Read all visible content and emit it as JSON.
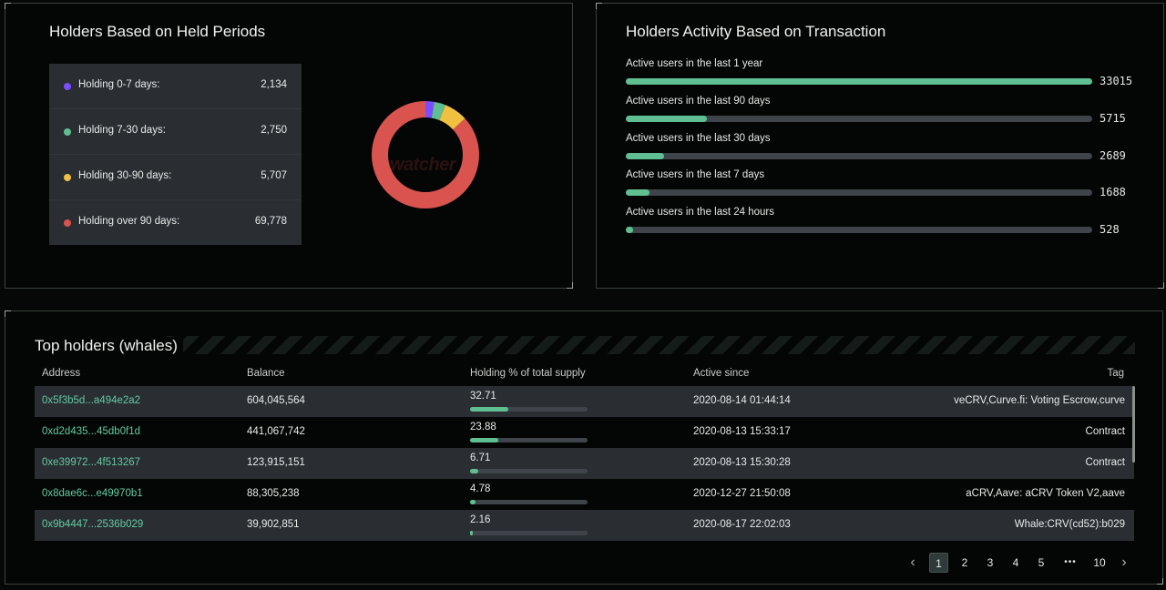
{
  "held_periods": {
    "title": "Holders Based on Held Periods",
    "watermark": "watcher",
    "items": [
      {
        "label": "Holding 0-7 days:",
        "value": "2,134",
        "amount": 2134,
        "color": "#7c4dff"
      },
      {
        "label": "Holding 7-30 days:",
        "value": "2,750",
        "amount": 2750,
        "color": "#5fbf93"
      },
      {
        "label": "Holding 30-90 days:",
        "value": "5,707",
        "amount": 5707,
        "color": "#f0c040"
      },
      {
        "label": "Holding over 90 days:",
        "value": "69,778",
        "amount": 69778,
        "color": "#d9534f"
      }
    ]
  },
  "activity": {
    "title": "Holders Activity Based on Transaction",
    "max": 33015,
    "items": [
      {
        "label": "Active users in the last 1 year",
        "value": "33015",
        "amount": 33015
      },
      {
        "label": "Active users in the last 90 days",
        "value": "5715",
        "amount": 5715
      },
      {
        "label": "Active users in the last 30 days",
        "value": "2689",
        "amount": 2689
      },
      {
        "label": "Active users in the last 7 days",
        "value": "1688",
        "amount": 1688
      },
      {
        "label": "Active users in the last 24 hours",
        "value": "528",
        "amount": 528
      }
    ]
  },
  "top_holders": {
    "title": "Top holders (whales)",
    "columns": {
      "address": "Address",
      "balance": "Balance",
      "pct": "Holding % of total supply",
      "since": "Active since",
      "tag": "Tag"
    },
    "rows": [
      {
        "address": "0x5f3b5d...a494e2a2",
        "balance": "604,045,564",
        "pct": "32.71",
        "pct_value": 32.71,
        "since": "2020-08-14 01:44:14",
        "tag": "veCRV,Curve.fi: Voting Escrow,curve"
      },
      {
        "address": "0xd2d435...45db0f1d",
        "balance": "441,067,742",
        "pct": "23.88",
        "pct_value": 23.88,
        "since": "2020-08-13 15:33:17",
        "tag": "Contract"
      },
      {
        "address": "0xe39972...4f513267",
        "balance": "123,915,151",
        "pct": "6.71",
        "pct_value": 6.71,
        "since": "2020-08-13 15:30:28",
        "tag": "Contract"
      },
      {
        "address": "0x8dae6c...e49970b1",
        "balance": "88,305,238",
        "pct": "4.78",
        "pct_value": 4.78,
        "since": "2020-12-27 21:50:08",
        "tag": "aCRV,Aave: aCRV Token V2,aave"
      },
      {
        "address": "0x9b4447...2536b029",
        "balance": "39,902,851",
        "pct": "2.16",
        "pct_value": 2.16,
        "since": "2020-08-17 22:02:03",
        "tag": "Whale:CRV(cd52):b029"
      }
    ],
    "pagination": {
      "prev": "‹",
      "pages": [
        "1",
        "2",
        "3",
        "4",
        "5"
      ],
      "ellipsis": "•••",
      "last": "10",
      "next": "›",
      "current": "1"
    }
  }
}
